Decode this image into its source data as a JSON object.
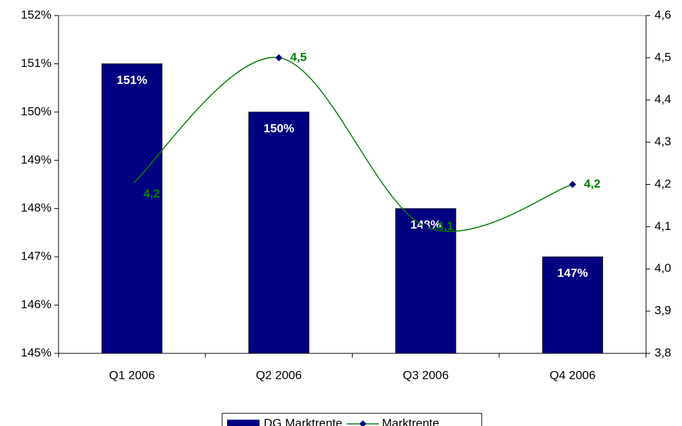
{
  "chart_data": {
    "type": "bar-line",
    "categories": [
      "Q1 2006",
      "Q2 2006",
      "Q3 2006",
      "Q4 2006"
    ],
    "series": [
      {
        "name": "DG Marktrente",
        "type": "bar",
        "color": "#000080",
        "values": [
          151,
          150,
          148,
          147
        ],
        "value_labels": [
          "151%",
          "150%",
          "148%",
          "147%"
        ]
      },
      {
        "name": "Marktrente",
        "type": "line",
        "axis": "y2",
        "color": "#008000",
        "marker_color": "#000080",
        "smooth": true,
        "values": [
          4.2,
          4.5,
          4.1,
          4.2
        ],
        "value_labels": [
          "4,2",
          "4,5",
          "4,1",
          "4,2"
        ]
      }
    ],
    "ylim": [
      145,
      152
    ],
    "yticks": [
      {
        "value": 145,
        "label": "145%"
      },
      {
        "value": 146,
        "label": "146%"
      },
      {
        "value": 147,
        "label": "147%"
      },
      {
        "value": 148,
        "label": "148%"
      },
      {
        "value": 149,
        "label": "149%"
      },
      {
        "value": 150,
        "label": "150%"
      },
      {
        "value": 151,
        "label": "151%"
      },
      {
        "value": 152,
        "label": "152%"
      }
    ],
    "y2lim": [
      3.8,
      4.6
    ],
    "y2ticks": [
      {
        "value": 3.8,
        "label": "3,8"
      },
      {
        "value": 3.9,
        "label": "3,9"
      },
      {
        "value": 4.0,
        "label": "4,0"
      },
      {
        "value": 4.1,
        "label": "4,1"
      },
      {
        "value": 4.2,
        "label": "4,2"
      },
      {
        "value": 4.3,
        "label": "4,3"
      },
      {
        "value": 4.4,
        "label": "4,4"
      },
      {
        "value": 4.5,
        "label": "4,5"
      },
      {
        "value": 4.6,
        "label": "4,6"
      }
    ],
    "legend": "bottom"
  }
}
